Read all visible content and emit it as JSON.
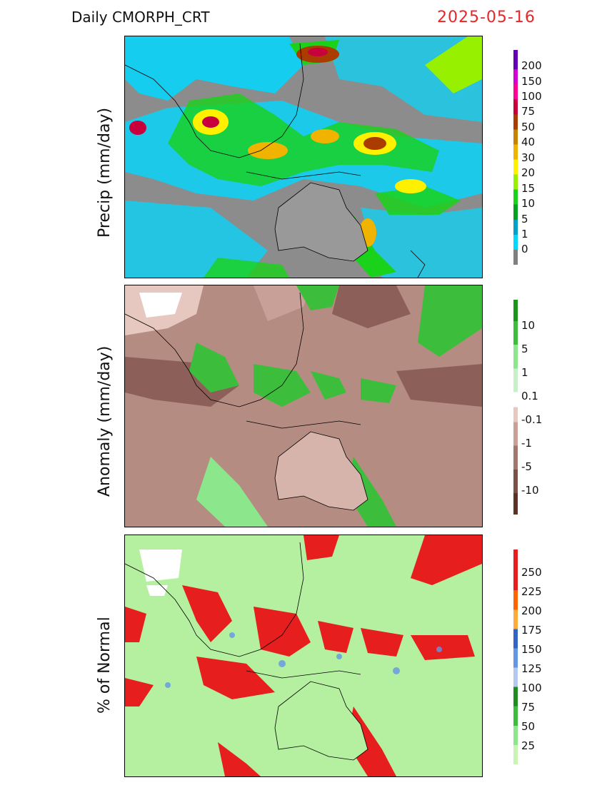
{
  "header": {
    "title": "Daily  CMORPH_CRT",
    "date": "2025-05-16"
  },
  "panels": [
    {
      "id": "precip",
      "ylabel": "Precip  (mm/day)",
      "background": "#8c8c8c",
      "land_fill": "#999999",
      "colorbar": {
        "colors": [
          "#808080",
          "#00d8ff",
          "#00a0c8",
          "#00a020",
          "#19d219",
          "#96f000",
          "#fff000",
          "#f0b400",
          "#c88200",
          "#aa3c00",
          "#c8003c",
          "#ff0096",
          "#d200d2",
          "#8c00c8",
          "#6400b4"
        ],
        "labels": [
          "0",
          "1",
          "5",
          "10",
          "15",
          "20",
          "30",
          "40",
          "50",
          "75",
          "100",
          "150",
          "200"
        ]
      }
    },
    {
      "id": "anomaly",
      "ylabel": "Anomaly  (mm/day)",
      "background": "#b48c82",
      "land_fill": "#d6b4ac",
      "colorbar": {
        "colors": [
          "#5a3228",
          "#7a5048",
          "#a07870",
          "#c8a098",
          "#e6c8c0",
          "#ffffff",
          "#c8f0c8",
          "#8ce68c",
          "#3cbe3c",
          "#199619"
        ],
        "labels": [
          "-10",
          "-5",
          "-1",
          "-0.1",
          "0.1",
          "1",
          "5",
          "10"
        ]
      }
    },
    {
      "id": "percent",
      "ylabel": "% of Normal",
      "background": "#b4f0a0",
      "land_fill": "#b4f0a0",
      "colorbar": {
        "colors": [
          "#c8f5b4",
          "#8ce68c",
          "#3cbe3c",
          "#1e8c1e",
          "#b4c8f0",
          "#6496e6",
          "#3264c8",
          "#ffaa3c",
          "#ff6400",
          "#e61e1e"
        ],
        "labels": [
          "25",
          "50",
          "75",
          "100",
          "125",
          "150",
          "175",
          "200",
          "225",
          "250"
        ]
      }
    }
  ]
}
